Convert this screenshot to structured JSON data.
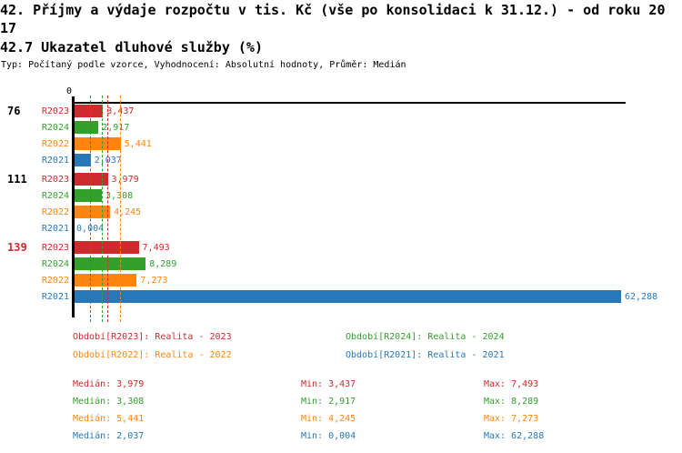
{
  "page": {
    "title": "42. Příjmy a výdaje rozpočtu v tis. Kč (vše po konsolidaci k 31.12.) - od roku 2017",
    "subtitle": "42.7 Ukazatel dluhové služby (%)",
    "meta": "Typ: Počítaný podle vzorce, Vyhodnocení: Absolutní hodnoty, Průměr: Medián"
  },
  "chart_data": {
    "type": "bar",
    "orientation": "horizontal",
    "unit": "%",
    "x_origin_label": "0",
    "x_max": 62.288,
    "series_colors": {
      "R2023": "#cf2a2e",
      "R2024": "#33a02c",
      "R2022": "#ff850e",
      "R2021": "#2878b8"
    },
    "groups": [
      {
        "label": "76",
        "label_color": "#000000",
        "bars": [
          {
            "series": "R2023",
            "value": 3.437,
            "label": "3,437"
          },
          {
            "series": "R2024",
            "value": 2.917,
            "label": "2,917"
          },
          {
            "series": "R2022",
            "value": 5.441,
            "label": "5,441"
          },
          {
            "series": "R2021",
            "value": 2.037,
            "label": "2,037"
          }
        ]
      },
      {
        "label": "111",
        "label_color": "#000000",
        "bars": [
          {
            "series": "R2023",
            "value": 3.979,
            "label": "3,979"
          },
          {
            "series": "R2024",
            "value": 3.308,
            "label": "3,308"
          },
          {
            "series": "R2022",
            "value": 4.245,
            "label": "4,245"
          },
          {
            "series": "R2021",
            "value": 0.004,
            "label": "0,004"
          }
        ]
      },
      {
        "label": "139",
        "label_color": "#cf2a2e",
        "bars": [
          {
            "series": "R2023",
            "value": 7.493,
            "label": "7,493"
          },
          {
            "series": "R2024",
            "value": 8.289,
            "label": "8,289"
          },
          {
            "series": "R2022",
            "value": 7.273,
            "label": "7,273"
          },
          {
            "series": "R2021",
            "value": 62.288,
            "label": "62,288"
          }
        ]
      }
    ],
    "medians": [
      {
        "series": "R2023",
        "value": 3.979
      },
      {
        "series": "R2024",
        "value": 3.308
      },
      {
        "series": "R2022",
        "value": 5.441
      },
      {
        "series": "R2021",
        "value": 2.037
      }
    ]
  },
  "legend": {
    "items": [
      {
        "series": "R2023",
        "text": "Období[R2023]: Realita - 2023"
      },
      {
        "series": "R2024",
        "text": "Období[R2024]: Realita - 2024"
      },
      {
        "series": "R2022",
        "text": "Období[R2022]: Realita - 2022"
      },
      {
        "series": "R2021",
        "text": "Období[R2021]: Realita - 2021"
      }
    ]
  },
  "stats": {
    "rows": [
      {
        "series": "R2023",
        "median": "Medián: 3,979",
        "min": "Min: 3,437",
        "max": "Max: 7,493"
      },
      {
        "series": "R2024",
        "median": "Medián: 3,308",
        "min": "Min: 2,917",
        "max": "Max: 8,289"
      },
      {
        "series": "R2022",
        "median": "Medián: 5,441",
        "min": "Min: 4,245",
        "max": "Max: 7,273"
      },
      {
        "series": "R2021",
        "median": "Medián: 2,037",
        "min": "Min: 0,004",
        "max": "Max: 62,288"
      }
    ]
  }
}
